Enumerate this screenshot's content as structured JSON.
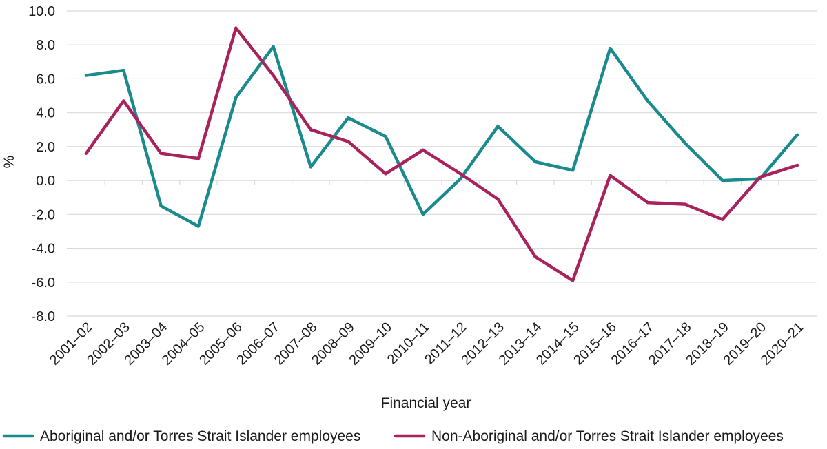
{
  "chart_data": {
    "type": "line",
    "title": "",
    "xlabel": "Financial year",
    "ylabel": "%",
    "ylim": [
      -8.0,
      10.0
    ],
    "yticks": [
      "10.0",
      "8.0",
      "6.0",
      "4.0",
      "2.0",
      "0.0",
      "-2.0",
      "-4.0",
      "-6.0",
      "-8.0"
    ],
    "grid": true,
    "legend_position": "bottom",
    "categories": [
      "2001–02",
      "2002–03",
      "2003–04",
      "2004–05",
      "2005–06",
      "2006–07",
      "2007–08",
      "2008–09",
      "2009–10",
      "2010–11",
      "2011–12",
      "2012–13",
      "2013–14",
      "2014–15",
      "2015–16",
      "2016–17",
      "2017–18",
      "2018–19",
      "2019–20",
      "2020–21"
    ],
    "series": [
      {
        "name": "Aboriginal and/or Torres Strait Islander employees",
        "color": "#1b8a8c",
        "values": [
          6.2,
          6.5,
          -1.5,
          -2.7,
          4.9,
          7.9,
          0.8,
          3.7,
          2.6,
          -2.0,
          0.1,
          3.2,
          1.1,
          0.6,
          7.8,
          4.7,
          2.2,
          0.0,
          0.1,
          2.7
        ]
      },
      {
        "name": "Non-Aboriginal and/or Torres Strait Islander employees",
        "color": "#a8235b",
        "values": [
          1.6,
          4.7,
          1.6,
          1.3,
          9.0,
          6.2,
          3.0,
          2.3,
          0.4,
          1.8,
          0.4,
          -1.1,
          -4.5,
          -5.9,
          0.3,
          -1.3,
          -1.4,
          -2.3,
          0.2,
          0.9
        ]
      }
    ]
  }
}
